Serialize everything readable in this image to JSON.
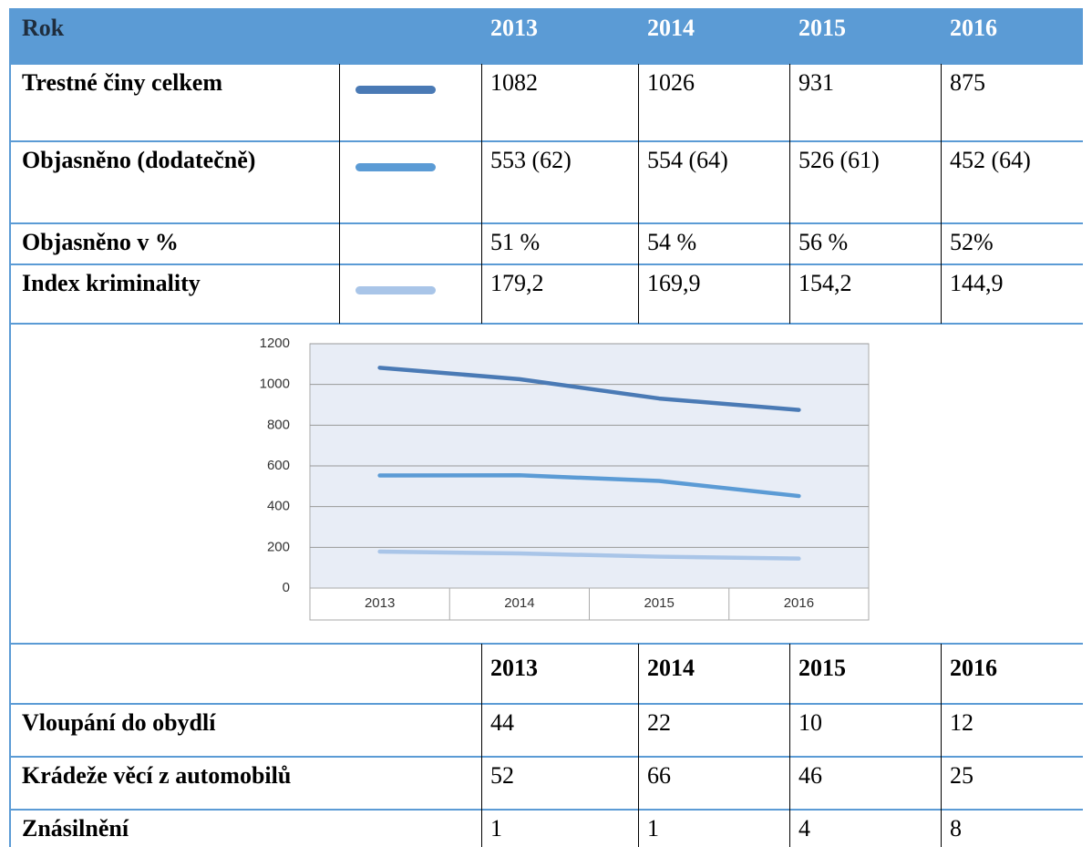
{
  "table1": {
    "header": {
      "label": "Rok",
      "years": [
        "2013",
        "2014",
        "2015",
        "2016"
      ]
    },
    "rows": [
      {
        "label": "Trestné činy celkem",
        "cells": [
          "1082",
          "1026",
          "931",
          "875"
        ]
      },
      {
        "label": "Objasněno (dodatečně)",
        "cells": [
          "553 (62)",
          "554 (64)",
          "526 (61)",
          "452 (64)"
        ]
      },
      {
        "label": "Objasněno v %",
        "cells": [
          "51 %",
          "54 %",
          "56 %",
          "52%"
        ]
      },
      {
        "label": "Index kriminality",
        "cells": [
          "179,2",
          "169,9",
          "154,2",
          "144,9"
        ]
      }
    ]
  },
  "chart_data": {
    "type": "line",
    "categories": [
      "2013",
      "2014",
      "2015",
      "2016"
    ],
    "series": [
      {
        "color": "#4a7ab5",
        "values": [
          1082,
          1026,
          931,
          875
        ]
      },
      {
        "color": "#5b9bd5",
        "values": [
          553,
          554,
          526,
          452
        ]
      },
      {
        "color": "#a9c5e8",
        "values": [
          179.2,
          169.9,
          154.2,
          144.9
        ]
      }
    ],
    "ylim": [
      0,
      1200
    ],
    "yticks": [
      0,
      200,
      400,
      600,
      800,
      1000,
      1200
    ],
    "grid": true
  },
  "table2": {
    "years": [
      "2013",
      "2014",
      "2015",
      "2016"
    ],
    "rows": [
      {
        "label": "Vloupání do obydlí",
        "cells": [
          "44",
          "22",
          "10",
          "12"
        ]
      },
      {
        "label": "Krádeže věcí z automobilů",
        "cells": [
          "52",
          "66",
          "46",
          "25"
        ]
      },
      {
        "label": "Znásilnění",
        "cells": [
          "1",
          "1",
          "4",
          "8"
        ]
      }
    ]
  }
}
